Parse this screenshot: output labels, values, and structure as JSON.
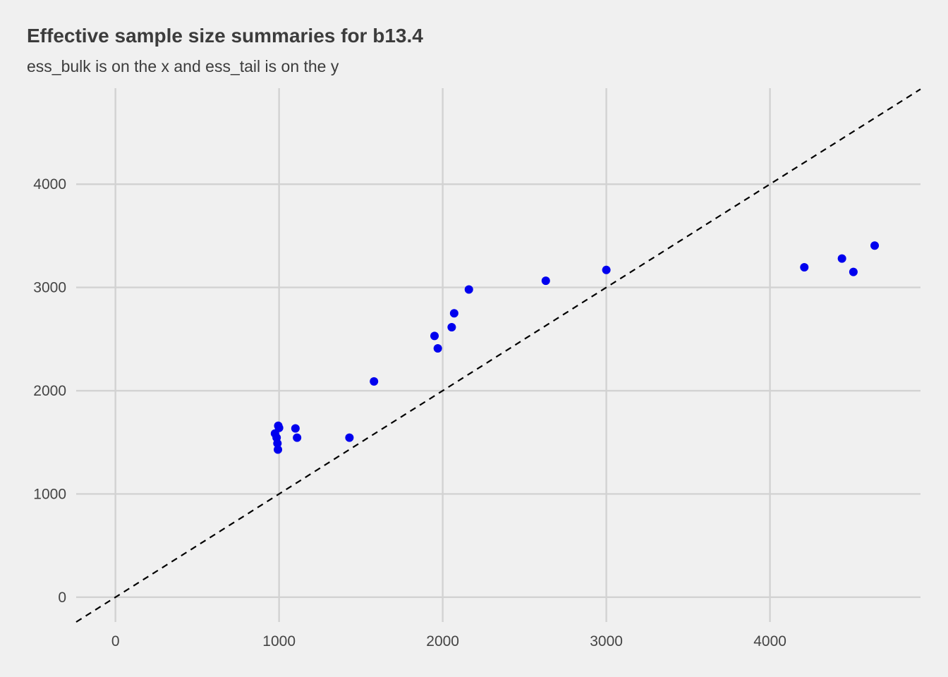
{
  "chart_data": {
    "type": "scatter",
    "title": "Effective sample size summaries for b13.4",
    "subtitle": "ess_bulk is on the x and ess_tail is on the y",
    "xlabel": "",
    "ylabel": "",
    "xlim": [
      -240,
      4920
    ],
    "ylim": [
      -240,
      4930
    ],
    "x_ticks": [
      0,
      1000,
      2000,
      3000,
      4000
    ],
    "y_ticks": [
      0,
      1000,
      2000,
      3000,
      4000
    ],
    "grid": true,
    "reference_line": {
      "slope": 1,
      "intercept": 0,
      "style": "dashed",
      "color": "#000000"
    },
    "point_color": "#0000ee",
    "points": [
      {
        "x": 975,
        "y": 1585
      },
      {
        "x": 985,
        "y": 1545
      },
      {
        "x": 990,
        "y": 1490
      },
      {
        "x": 993,
        "y": 1430
      },
      {
        "x": 995,
        "y": 1660
      },
      {
        "x": 1000,
        "y": 1640
      },
      {
        "x": 1100,
        "y": 1635
      },
      {
        "x": 1110,
        "y": 1545
      },
      {
        "x": 1430,
        "y": 1545
      },
      {
        "x": 1580,
        "y": 2090
      },
      {
        "x": 1950,
        "y": 2530
      },
      {
        "x": 1970,
        "y": 2410
      },
      {
        "x": 2055,
        "y": 2615
      },
      {
        "x": 2070,
        "y": 2750
      },
      {
        "x": 2160,
        "y": 2980
      },
      {
        "x": 2630,
        "y": 3065
      },
      {
        "x": 3000,
        "y": 3170
      },
      {
        "x": 4210,
        "y": 3195
      },
      {
        "x": 4440,
        "y": 3280
      },
      {
        "x": 4510,
        "y": 3150
      },
      {
        "x": 4640,
        "y": 3405
      }
    ]
  }
}
